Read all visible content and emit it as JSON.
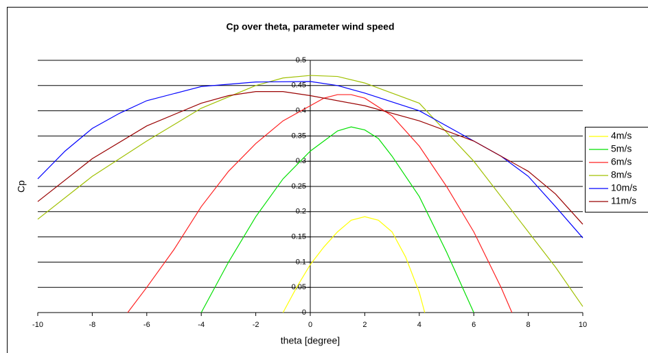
{
  "chart_data": {
    "type": "line",
    "title": "Cp over theta, parameter wind speed",
    "x_label": "theta [degree]",
    "y_label": "Cp",
    "xlim": [
      -10,
      10
    ],
    "xticks": [
      -10,
      -8,
      -6,
      -4,
      -2,
      0,
      2,
      4,
      6,
      8,
      10
    ],
    "ylim": [
      0,
      0.5
    ],
    "yticks": [
      0,
      0.05,
      0.1,
      0.15,
      0.2,
      0.25,
      0.3,
      0.35,
      0.4,
      0.45,
      0.5
    ],
    "grid": true,
    "legend": "right",
    "series": [
      {
        "name": "4m/s",
        "color": "#ffff00",
        "x": [
          -1,
          -0.5,
          0,
          0.5,
          1,
          1.5,
          2,
          2.5,
          3,
          3.5,
          4,
          4.2
        ],
        "values": [
          0,
          0.05,
          0.095,
          0.13,
          0.16,
          0.183,
          0.19,
          0.183,
          0.16,
          0.11,
          0.04,
          0
        ]
      },
      {
        "name": "5m/s",
        "color": "#00e000",
        "x": [
          -4,
          -3,
          -2,
          -1,
          0,
          0.5,
          1,
          1.5,
          2,
          2.5,
          3,
          4,
          5,
          6
        ],
        "values": [
          0,
          0.1,
          0.19,
          0.265,
          0.32,
          0.34,
          0.36,
          0.368,
          0.362,
          0.345,
          0.31,
          0.23,
          0.12,
          0
        ]
      },
      {
        "name": "6m/s",
        "color": "#ff2020",
        "x": [
          -6.7,
          -6,
          -5,
          -4,
          -3,
          -2,
          -1,
          0,
          0.5,
          1,
          1.5,
          2,
          3,
          4,
          5,
          6,
          7,
          7.4
        ],
        "values": [
          0,
          0.05,
          0.125,
          0.21,
          0.28,
          0.335,
          0.38,
          0.41,
          0.425,
          0.432,
          0.432,
          0.425,
          0.39,
          0.33,
          0.25,
          0.16,
          0.05,
          0
        ]
      },
      {
        "name": "8m/s",
        "color": "#a0c000",
        "x": [
          -10,
          -8,
          -6,
          -4,
          -2,
          -1,
          0,
          1,
          2,
          4,
          6,
          8,
          9,
          10
        ],
        "values": [
          0.185,
          0.27,
          0.34,
          0.405,
          0.45,
          0.465,
          0.47,
          0.468,
          0.455,
          0.415,
          0.3,
          0.16,
          0.09,
          0.012
        ]
      },
      {
        "name": "10m/s",
        "color": "#0000ff",
        "x": [
          -10,
          -9,
          -8,
          -7,
          -6,
          -4,
          -2,
          0,
          1,
          2,
          4,
          6,
          7,
          8,
          9,
          10
        ],
        "values": [
          0.265,
          0.32,
          0.365,
          0.395,
          0.42,
          0.448,
          0.457,
          0.458,
          0.45,
          0.435,
          0.4,
          0.34,
          0.31,
          0.27,
          0.21,
          0.148
        ]
      },
      {
        "name": "11m/s",
        "color": "#990000",
        "x": [
          -10,
          -8,
          -6,
          -4,
          -3,
          -2,
          -1,
          0,
          2,
          4,
          6,
          7,
          8,
          9,
          10
        ],
        "values": [
          0.22,
          0.305,
          0.37,
          0.415,
          0.43,
          0.438,
          0.438,
          0.43,
          0.41,
          0.38,
          0.34,
          0.31,
          0.28,
          0.235,
          0.175
        ]
      }
    ]
  }
}
